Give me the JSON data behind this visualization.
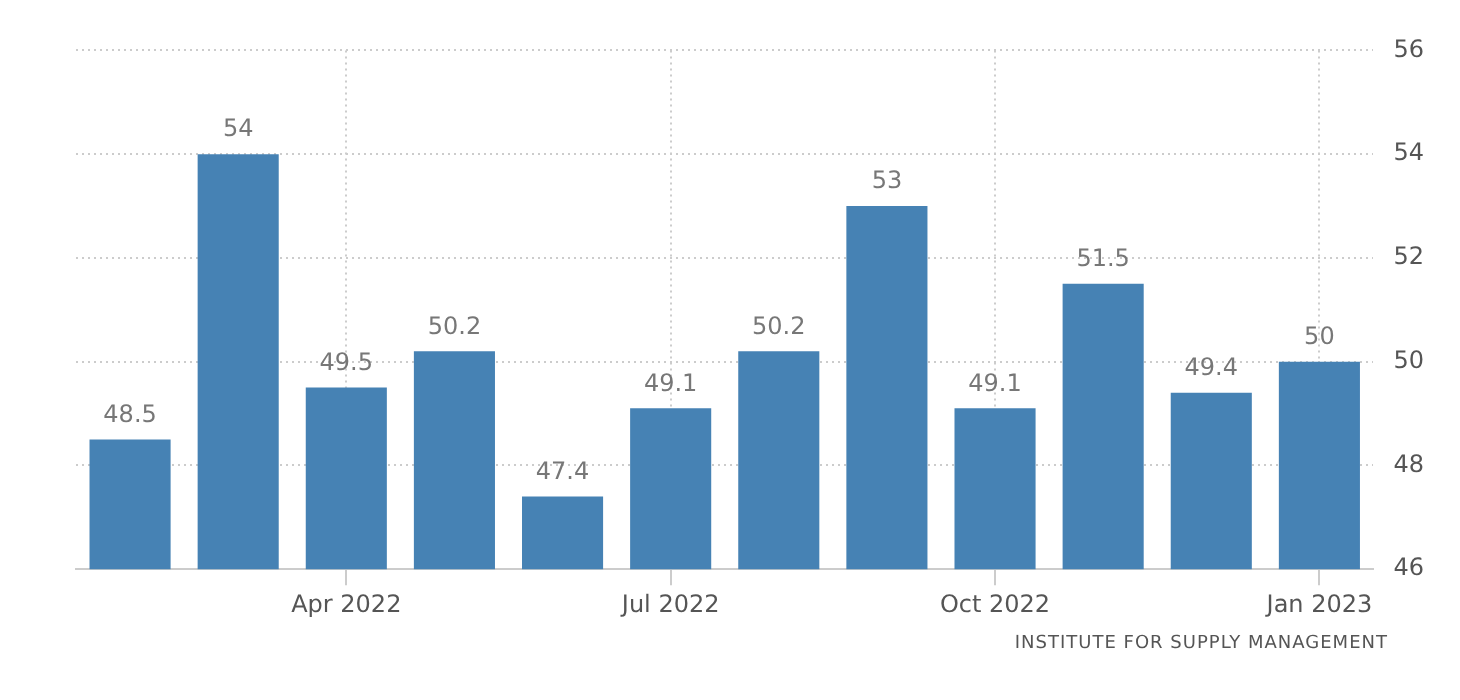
{
  "chart_data": {
    "type": "bar",
    "categories": [
      null,
      null,
      "Apr 2022",
      null,
      null,
      "Jul 2022",
      null,
      null,
      "Oct 2022",
      null,
      null,
      "Jan 2023"
    ],
    "values": [
      48.5,
      54,
      49.5,
      50.2,
      47.4,
      49.1,
      50.2,
      53,
      49.1,
      51.5,
      49.4,
      50
    ],
    "color": "#4682b4",
    "ylim": [
      46,
      56
    ],
    "yticks": [
      46,
      48,
      50,
      52,
      54,
      56
    ],
    "grid": true,
    "data_labels": true,
    "legend": false,
    "annotations": [
      "INSTITUTE FOR SUPPLY MANAGEMENT"
    ]
  }
}
